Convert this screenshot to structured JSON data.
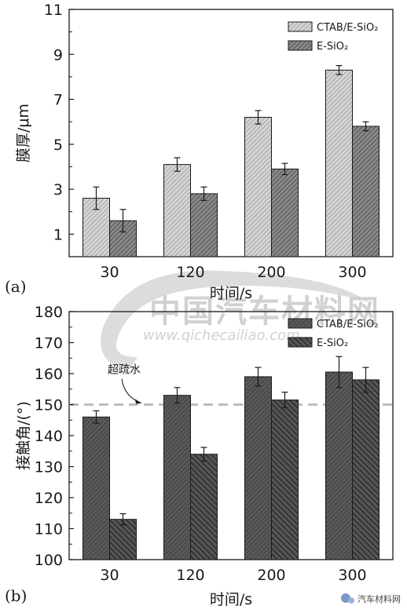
{
  "chart_data": [
    {
      "type": "bar",
      "panel_label": "(a)",
      "xlabel": "时间/s",
      "ylabel": "膜厚/μm",
      "categories": [
        "30",
        "120",
        "200",
        "300"
      ],
      "ylim": [
        0,
        11
      ],
      "yticks": [
        "1",
        "3",
        "5",
        "7",
        "9",
        "11"
      ],
      "grid": false,
      "legend_position": "top-right",
      "series": [
        {
          "name": "CTAB/E-SiO₂",
          "values": [
            2.6,
            4.1,
            6.2,
            8.3
          ],
          "errors": [
            0.5,
            0.3,
            0.3,
            0.2
          ],
          "color": "#c8c8c8"
        },
        {
          "name": "E-SiO₂",
          "values": [
            1.6,
            2.8,
            3.9,
            5.8
          ],
          "errors": [
            0.5,
            0.3,
            0.25,
            0.2
          ],
          "color": "#777777"
        }
      ]
    },
    {
      "type": "bar",
      "panel_label": "(b)",
      "xlabel": "时间/s",
      "ylabel": "接触角/(°)",
      "categories": [
        "30",
        "120",
        "200",
        "300"
      ],
      "ylim": [
        100,
        180
      ],
      "yticks": [
        "100",
        "110",
        "120",
        "130",
        "140",
        "150",
        "160",
        "170",
        "180"
      ],
      "grid": false,
      "legend_position": "top-right",
      "reference_line": {
        "value": 150,
        "label": "超疏水"
      },
      "series": [
        {
          "name": "CTAB/E-SiO₂",
          "values": [
            146,
            153,
            159,
            160.5
          ],
          "errors": [
            2,
            2.5,
            3,
            5
          ],
          "color": "#4a4a4a"
        },
        {
          "name": "E-SiO₂",
          "values": [
            113,
            134,
            151.5,
            158
          ],
          "errors": [
            1.8,
            2.2,
            2.5,
            4
          ],
          "color": "#3a3a3a"
        }
      ]
    }
  ],
  "watermark": {
    "title": "中国汽车材料网",
    "url": "www.qichecailiao.com",
    "badge": "汽车材料网"
  }
}
